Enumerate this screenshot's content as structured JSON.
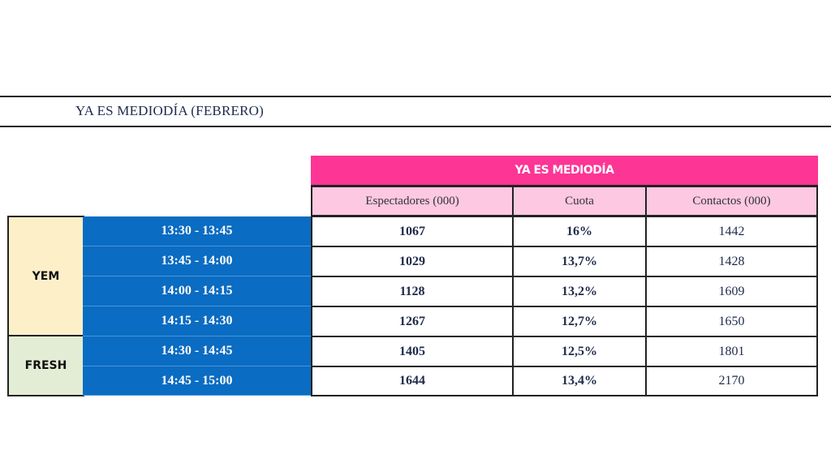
{
  "document_title": "YA ES MEDIODÍA (FEBRERO)",
  "table": {
    "header": "YA ES MEDIODÍA",
    "columns": [
      "Espectadores (000)",
      "Cuota",
      "Contactos (000)"
    ],
    "groups": [
      {
        "label": "YEM",
        "color": "#fdf0c8"
      },
      {
        "label": "FRESH",
        "color": "#e3ecd4"
      }
    ],
    "rows": [
      {
        "time": "13:30 - 13:45",
        "espectadores": "1067",
        "cuota": "16%",
        "contactos": "1442"
      },
      {
        "time": "13:45 - 14:00",
        "espectadores": "1029",
        "cuota": "13,7%",
        "contactos": "1428"
      },
      {
        "time": "14:00 - 14:15",
        "espectadores": "1128",
        "cuota": "13,2%",
        "contactos": "1609"
      },
      {
        "time": "14:15 - 14:30",
        "espectadores": "1267",
        "cuota": "12,7%",
        "contactos": "1650"
      },
      {
        "time": "14:30 - 14:45",
        "espectadores": "1405",
        "cuota": "12,5%",
        "contactos": "1801"
      },
      {
        "time": "14:45 - 15:00",
        "espectadores": "1644",
        "cuota": "13,4%",
        "contactos": "2170"
      }
    ]
  },
  "colors": {
    "header_pink": "#fd3595",
    "subheader_pink": "#fdc8e2",
    "time_blue": "#0a6cc2"
  }
}
